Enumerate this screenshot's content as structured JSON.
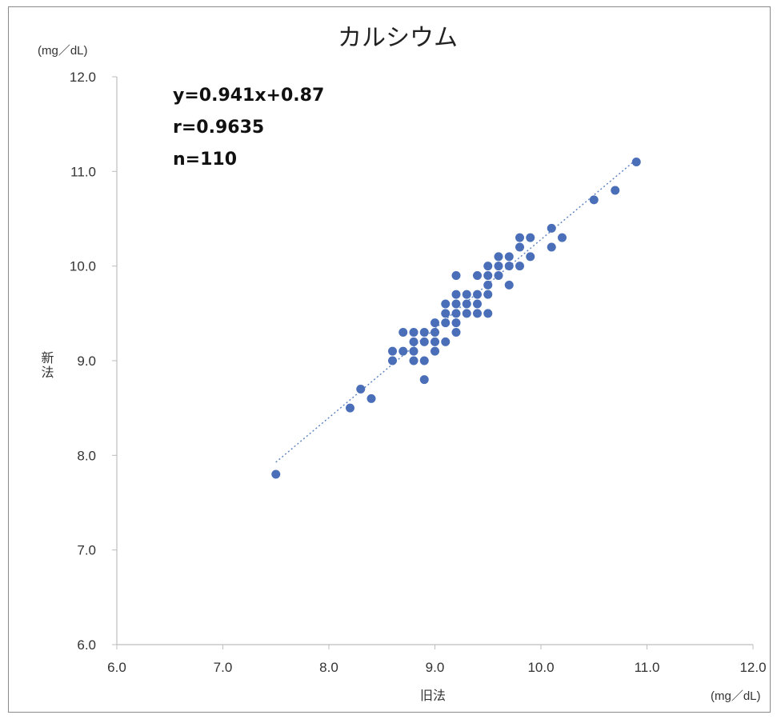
{
  "chart_data": {
    "type": "scatter",
    "title": "カルシウム",
    "xlabel": "旧法",
    "ylabel": "新法",
    "x_unit": "(mg／dL)",
    "y_unit": "(mg／dL)",
    "xlim": [
      6.0,
      12.0
    ],
    "ylim": [
      6.0,
      12.0
    ],
    "x_ticks": [
      "6.0",
      "7.0",
      "8.0",
      "9.0",
      "10.0",
      "11.0",
      "12.0"
    ],
    "y_ticks": [
      "6.0",
      "7.0",
      "8.0",
      "9.0",
      "10.0",
      "11.0",
      "12.0"
    ],
    "annotations": [
      "y=0.941x+0.87",
      "r=0.9635",
      "n=110"
    ],
    "trendline": {
      "slope": 0.941,
      "intercept": 0.87,
      "x_range": [
        7.5,
        10.9
      ],
      "style": "dotted"
    },
    "marker_color": "#4a6fb8",
    "trend_color": "#5a7fc0",
    "grid": false,
    "legend": "none",
    "points": [
      [
        7.5,
        7.8
      ],
      [
        8.2,
        8.5
      ],
      [
        8.3,
        8.7
      ],
      [
        8.4,
        8.6
      ],
      [
        8.6,
        9.0
      ],
      [
        8.6,
        9.1
      ],
      [
        8.7,
        9.1
      ],
      [
        8.7,
        9.3
      ],
      [
        8.8,
        9.0
      ],
      [
        8.8,
        9.1
      ],
      [
        8.8,
        9.2
      ],
      [
        8.8,
        9.3
      ],
      [
        8.9,
        8.8
      ],
      [
        8.9,
        9.0
      ],
      [
        8.9,
        9.2
      ],
      [
        8.9,
        9.3
      ],
      [
        9.0,
        9.1
      ],
      [
        9.0,
        9.2
      ],
      [
        9.0,
        9.3
      ],
      [
        9.0,
        9.4
      ],
      [
        9.1,
        9.2
      ],
      [
        9.1,
        9.4
      ],
      [
        9.1,
        9.5
      ],
      [
        9.1,
        9.6
      ],
      [
        9.2,
        9.3
      ],
      [
        9.2,
        9.4
      ],
      [
        9.2,
        9.5
      ],
      [
        9.2,
        9.6
      ],
      [
        9.2,
        9.7
      ],
      [
        9.2,
        9.9
      ],
      [
        9.3,
        9.5
      ],
      [
        9.3,
        9.6
      ],
      [
        9.3,
        9.7
      ],
      [
        9.4,
        9.5
      ],
      [
        9.4,
        9.6
      ],
      [
        9.4,
        9.7
      ],
      [
        9.4,
        9.9
      ],
      [
        9.5,
        9.5
      ],
      [
        9.5,
        9.7
      ],
      [
        9.5,
        9.8
      ],
      [
        9.5,
        9.9
      ],
      [
        9.5,
        10.0
      ],
      [
        9.6,
        9.9
      ],
      [
        9.6,
        10.0
      ],
      [
        9.6,
        10.1
      ],
      [
        9.7,
        9.8
      ],
      [
        9.7,
        10.0
      ],
      [
        9.7,
        10.1
      ],
      [
        9.8,
        10.0
      ],
      [
        9.8,
        10.2
      ],
      [
        9.8,
        10.3
      ],
      [
        9.9,
        10.1
      ],
      [
        9.9,
        10.3
      ],
      [
        10.1,
        10.2
      ],
      [
        10.1,
        10.4
      ],
      [
        10.2,
        10.3
      ],
      [
        10.5,
        10.7
      ],
      [
        10.7,
        10.8
      ],
      [
        10.9,
        11.1
      ]
    ]
  }
}
